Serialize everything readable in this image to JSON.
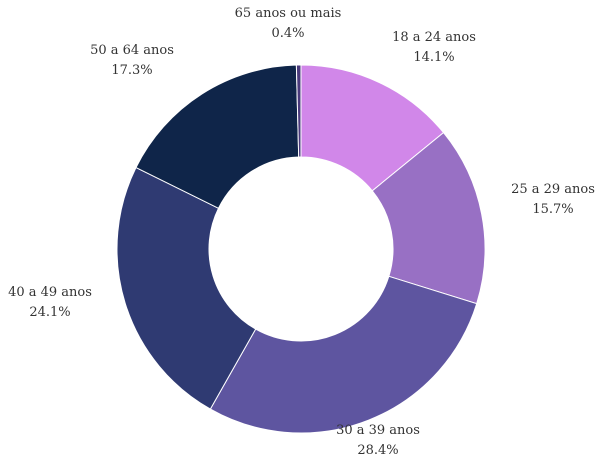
{
  "chart_data": {
    "type": "pie",
    "donut": true,
    "title": "",
    "legend": "none",
    "start_angle_deg": 0,
    "direction": "clockwise",
    "slices": [
      {
        "label": "18 a 24 anos",
        "value": 14.1,
        "value_label": "14.1%",
        "color": "#d187e9"
      },
      {
        "label": "25 a 29 anos",
        "value": 15.7,
        "value_label": "15.7%",
        "color": "#9870c4"
      },
      {
        "label": "30 a 39 anos",
        "value": 28.4,
        "value_label": "28.4%",
        "color": "#5e55a0"
      },
      {
        "label": "40 a 49 anos",
        "value": 24.1,
        "value_label": "24.1%",
        "color": "#2f3a72"
      },
      {
        "label": "50 a 64 anos",
        "value": 17.3,
        "value_label": "17.3%",
        "color": "#0f2549"
      },
      {
        "label": "65 anos ou mais",
        "value": 0.4,
        "value_label": "0.4%",
        "color": "#4a3a7c"
      }
    ]
  }
}
